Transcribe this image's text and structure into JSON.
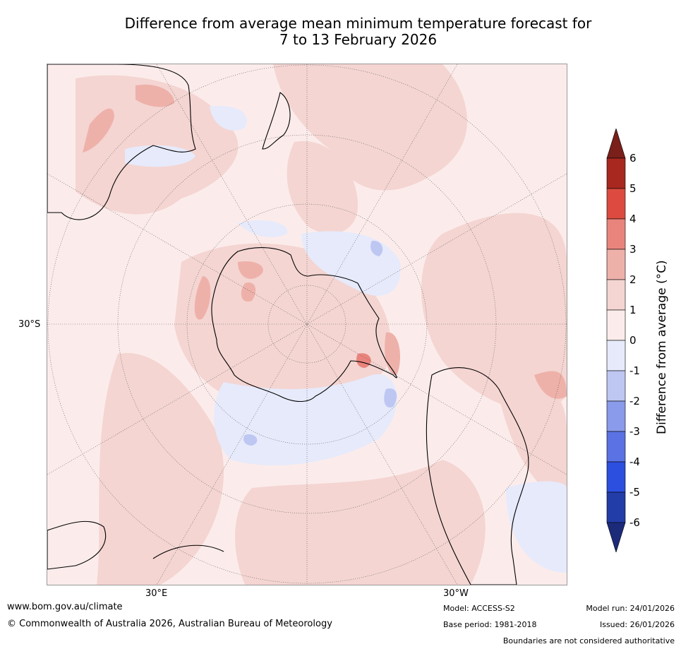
{
  "title_line1": "Difference from average mean minimum temperature forecast for",
  "title_line2": "7 to 13 February 2026",
  "axes": {
    "lat_label": "30°S",
    "lon_label_left": "30°E",
    "lon_label_right": "30°W"
  },
  "colorbar": {
    "label": "Difference from average (°C)",
    "ticks": [
      "6",
      "5",
      "4",
      "3",
      "2",
      "1",
      "0",
      "-1",
      "-2",
      "-3",
      "-4",
      "-5",
      "-6"
    ],
    "colors": {
      "gt6": "#7a1f1a",
      "5_6": "#a8281f",
      "4_5": "#dd4b40",
      "3_4": "#e9847c",
      "2_3": "#eeb1aa",
      "1_2": "#f4d5d2",
      "0_1": "#fbeceb",
      "m1_0": "#e6eafb",
      "m2_m1": "#bec7f2",
      "m3_m2": "#8a9bec",
      "m4_m3": "#5a72e4",
      "m5_m4": "#2c4fe0",
      "m6_m5": "#233da8",
      "lt_m6": "#1c2a7a"
    }
  },
  "footer": {
    "url": "www.bom.gov.au/climate",
    "copyright": "© Commonwealth of Australia 2026, Australian Bureau of Meteorology",
    "model": "Model: ACCESS-S2",
    "base_period": "Base period: 1981-2018",
    "model_run": "Model run: 24/01/2026",
    "issued": "Issued: 26/01/2026",
    "disclaimer": "Boundaries are not considered authoritative"
  }
}
